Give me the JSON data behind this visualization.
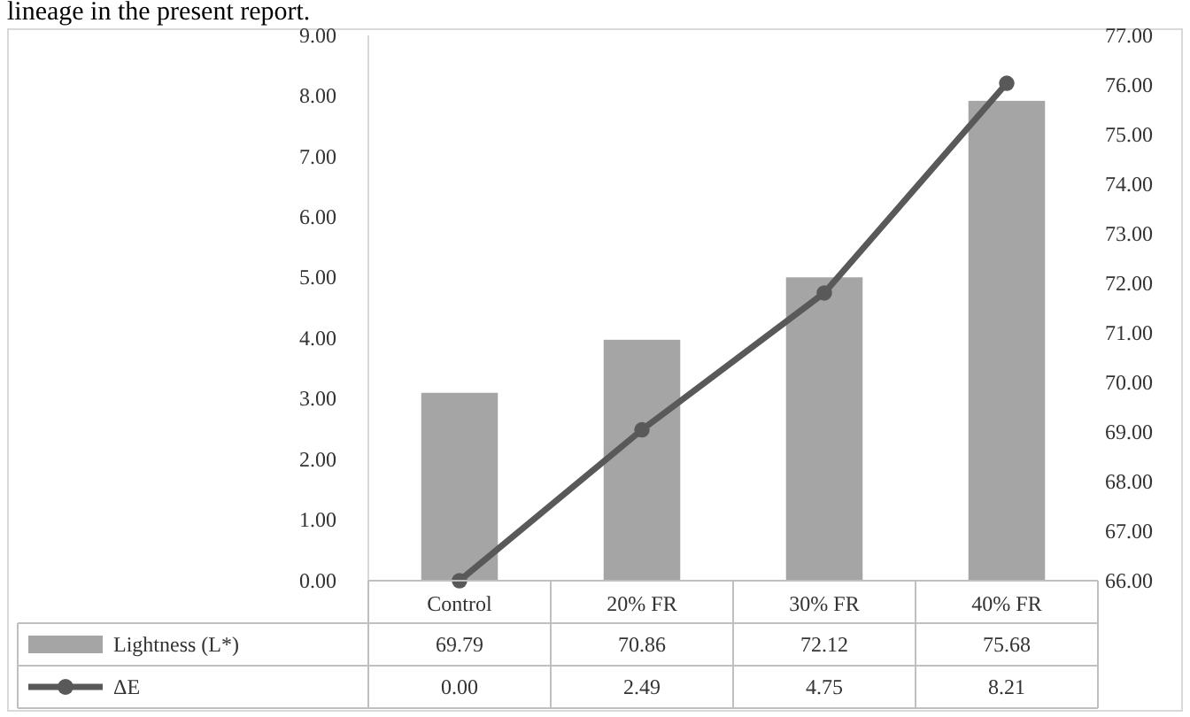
{
  "chart_data": {
    "type": "bar",
    "annotations": [
      "lineage in the present report."
    ],
    "categories": [
      "Control",
      "20% FR",
      "30% FR",
      "40% FR"
    ],
    "series": [
      {
        "name": "Lightness (L*)",
        "axis": "y2",
        "color": "#a5a5a5",
        "values": [
          69.79,
          70.86,
          72.12,
          75.68
        ],
        "value_labels": [
          "69.79",
          "70.86",
          "72.12",
          "75.68"
        ]
      },
      {
        "name": "ΔE",
        "type": "line",
        "axis": "y",
        "color": "#595959",
        "values": [
          0.0,
          2.49,
          4.75,
          8.21
        ],
        "value_labels": [
          "0.00",
          "2.49",
          "4.75",
          "8.21"
        ]
      }
    ],
    "ylim": [
      0,
      9
    ],
    "yticks": [
      {
        "value": 0,
        "label": "0.00"
      },
      {
        "value": 1,
        "label": "1.00"
      },
      {
        "value": 2,
        "label": "2.00"
      },
      {
        "value": 3,
        "label": "3.00"
      },
      {
        "value": 4,
        "label": "4.00"
      },
      {
        "value": 5,
        "label": "5.00"
      },
      {
        "value": 6,
        "label": "6.00"
      },
      {
        "value": 7,
        "label": "7.00"
      },
      {
        "value": 8,
        "label": "8.00"
      },
      {
        "value": 9,
        "label": "9.00"
      }
    ],
    "y2lim": [
      66,
      77
    ],
    "y2ticks": [
      {
        "value": 66,
        "label": "66.00"
      },
      {
        "value": 67,
        "label": "67.00"
      },
      {
        "value": 68,
        "label": "68.00"
      },
      {
        "value": 69,
        "label": "69.00"
      },
      {
        "value": 70,
        "label": "70.00"
      },
      {
        "value": 71,
        "label": "71.00"
      },
      {
        "value": 72,
        "label": "72.00"
      },
      {
        "value": 73,
        "label": "73.00"
      },
      {
        "value": 74,
        "label": "74.00"
      },
      {
        "value": 75,
        "label": "75.00"
      },
      {
        "value": 76,
        "label": "76.00"
      },
      {
        "value": 77,
        "label": "77.00"
      }
    ],
    "marker": "circle",
    "line_style": "solid",
    "legend": "bottom",
    "grid": false
  }
}
